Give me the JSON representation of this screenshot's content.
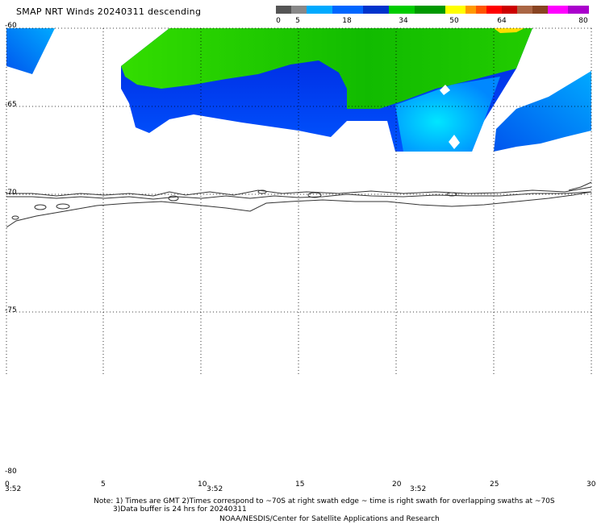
{
  "title": "SMAP NRT Winds  20240311 descending",
  "colorbar": {
    "labels": [
      "0",
      "5",
      "18",
      "34",
      "50",
      "64",
      "80"
    ],
    "colors": [
      "#555555",
      "#888888",
      "#00aaff",
      "#0066ff",
      "#0033cc",
      "#00cc00",
      "#009900",
      "#ffff00",
      "#ff9900",
      "#ff5500",
      "#ff0000",
      "#cc0000",
      "#aa6644",
      "#884422",
      "#ff00ff",
      "#aa00cc"
    ]
  },
  "lat_labels": [
    "-60",
    "-65",
    "-70",
    "-75",
    "-80"
  ],
  "lon_labels": [
    "0",
    "5",
    "10",
    "15",
    "20",
    "25",
    "30"
  ],
  "time_labels": [
    "3:52",
    "3:52",
    "3:52"
  ],
  "notes": [
    "Note: 1) Times are GMT 2)Times correspond to ~70S at right swath edge ~ time is right swath for overlapping swaths at ~70S",
    "3)Data buffer is 24 hrs for 20240311",
    "NOAA/NESDIS/Center for Satellite Applications and Research"
  ],
  "colors": {
    "green": "#22cc00",
    "dark_blue": "#0022dd",
    "mid_blue": "#0088ff",
    "light_blue": "#00ccff",
    "yellow": "#ffdd00",
    "coast": "#333333",
    "grid": "#000000"
  }
}
